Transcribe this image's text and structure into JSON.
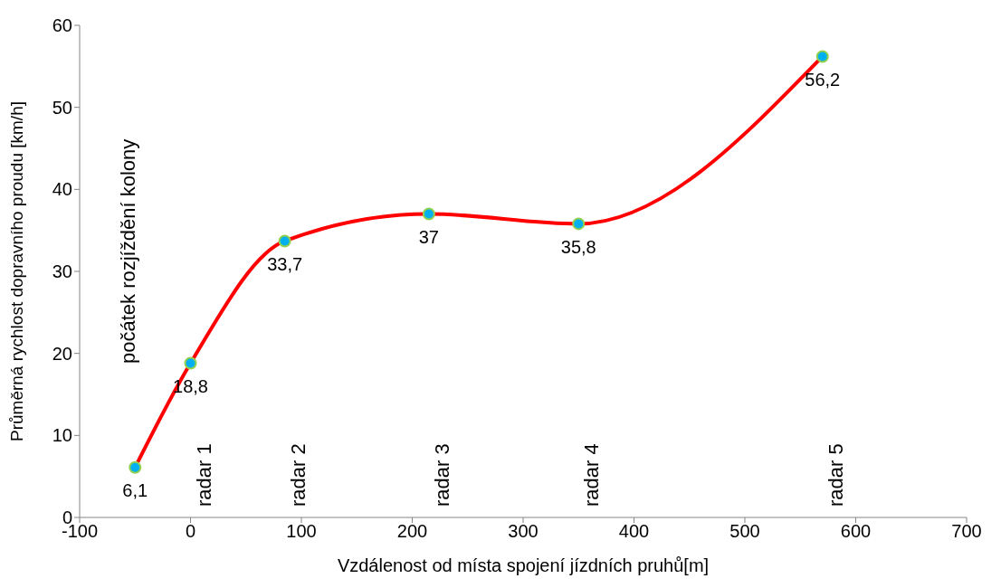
{
  "chart_data": {
    "type": "line",
    "xlabel": "Vzdálenost od místa spojení jízdních pruhů[m]",
    "ylabel": "Průměrná rychlost dopravního proudu [km/h]",
    "x": [
      -50,
      0,
      85,
      215,
      350,
      570
    ],
    "series": [
      {
        "color": "#ff0000",
        "values": [
          6.1,
          18.8,
          33.7,
          37,
          35.8,
          56.2
        ],
        "value_labels": [
          "6,1",
          "18,8",
          "33,7",
          "37",
          "35,8",
          "56,2"
        ]
      }
    ],
    "xlim": [
      -100,
      700
    ],
    "xticks": [
      -100,
      0,
      100,
      200,
      300,
      400,
      500,
      600,
      700
    ],
    "ylim": [
      0,
      60
    ],
    "yticks": [
      0,
      10,
      20,
      30,
      40,
      50,
      60
    ],
    "grid": false,
    "legend": false,
    "marker": "circle",
    "line_style": "solid",
    "annotations": [
      "počátek rozjíždění kolony",
      "radar 1",
      "radar 2",
      "radar 3",
      "radar 4",
      "radar 5"
    ]
  }
}
